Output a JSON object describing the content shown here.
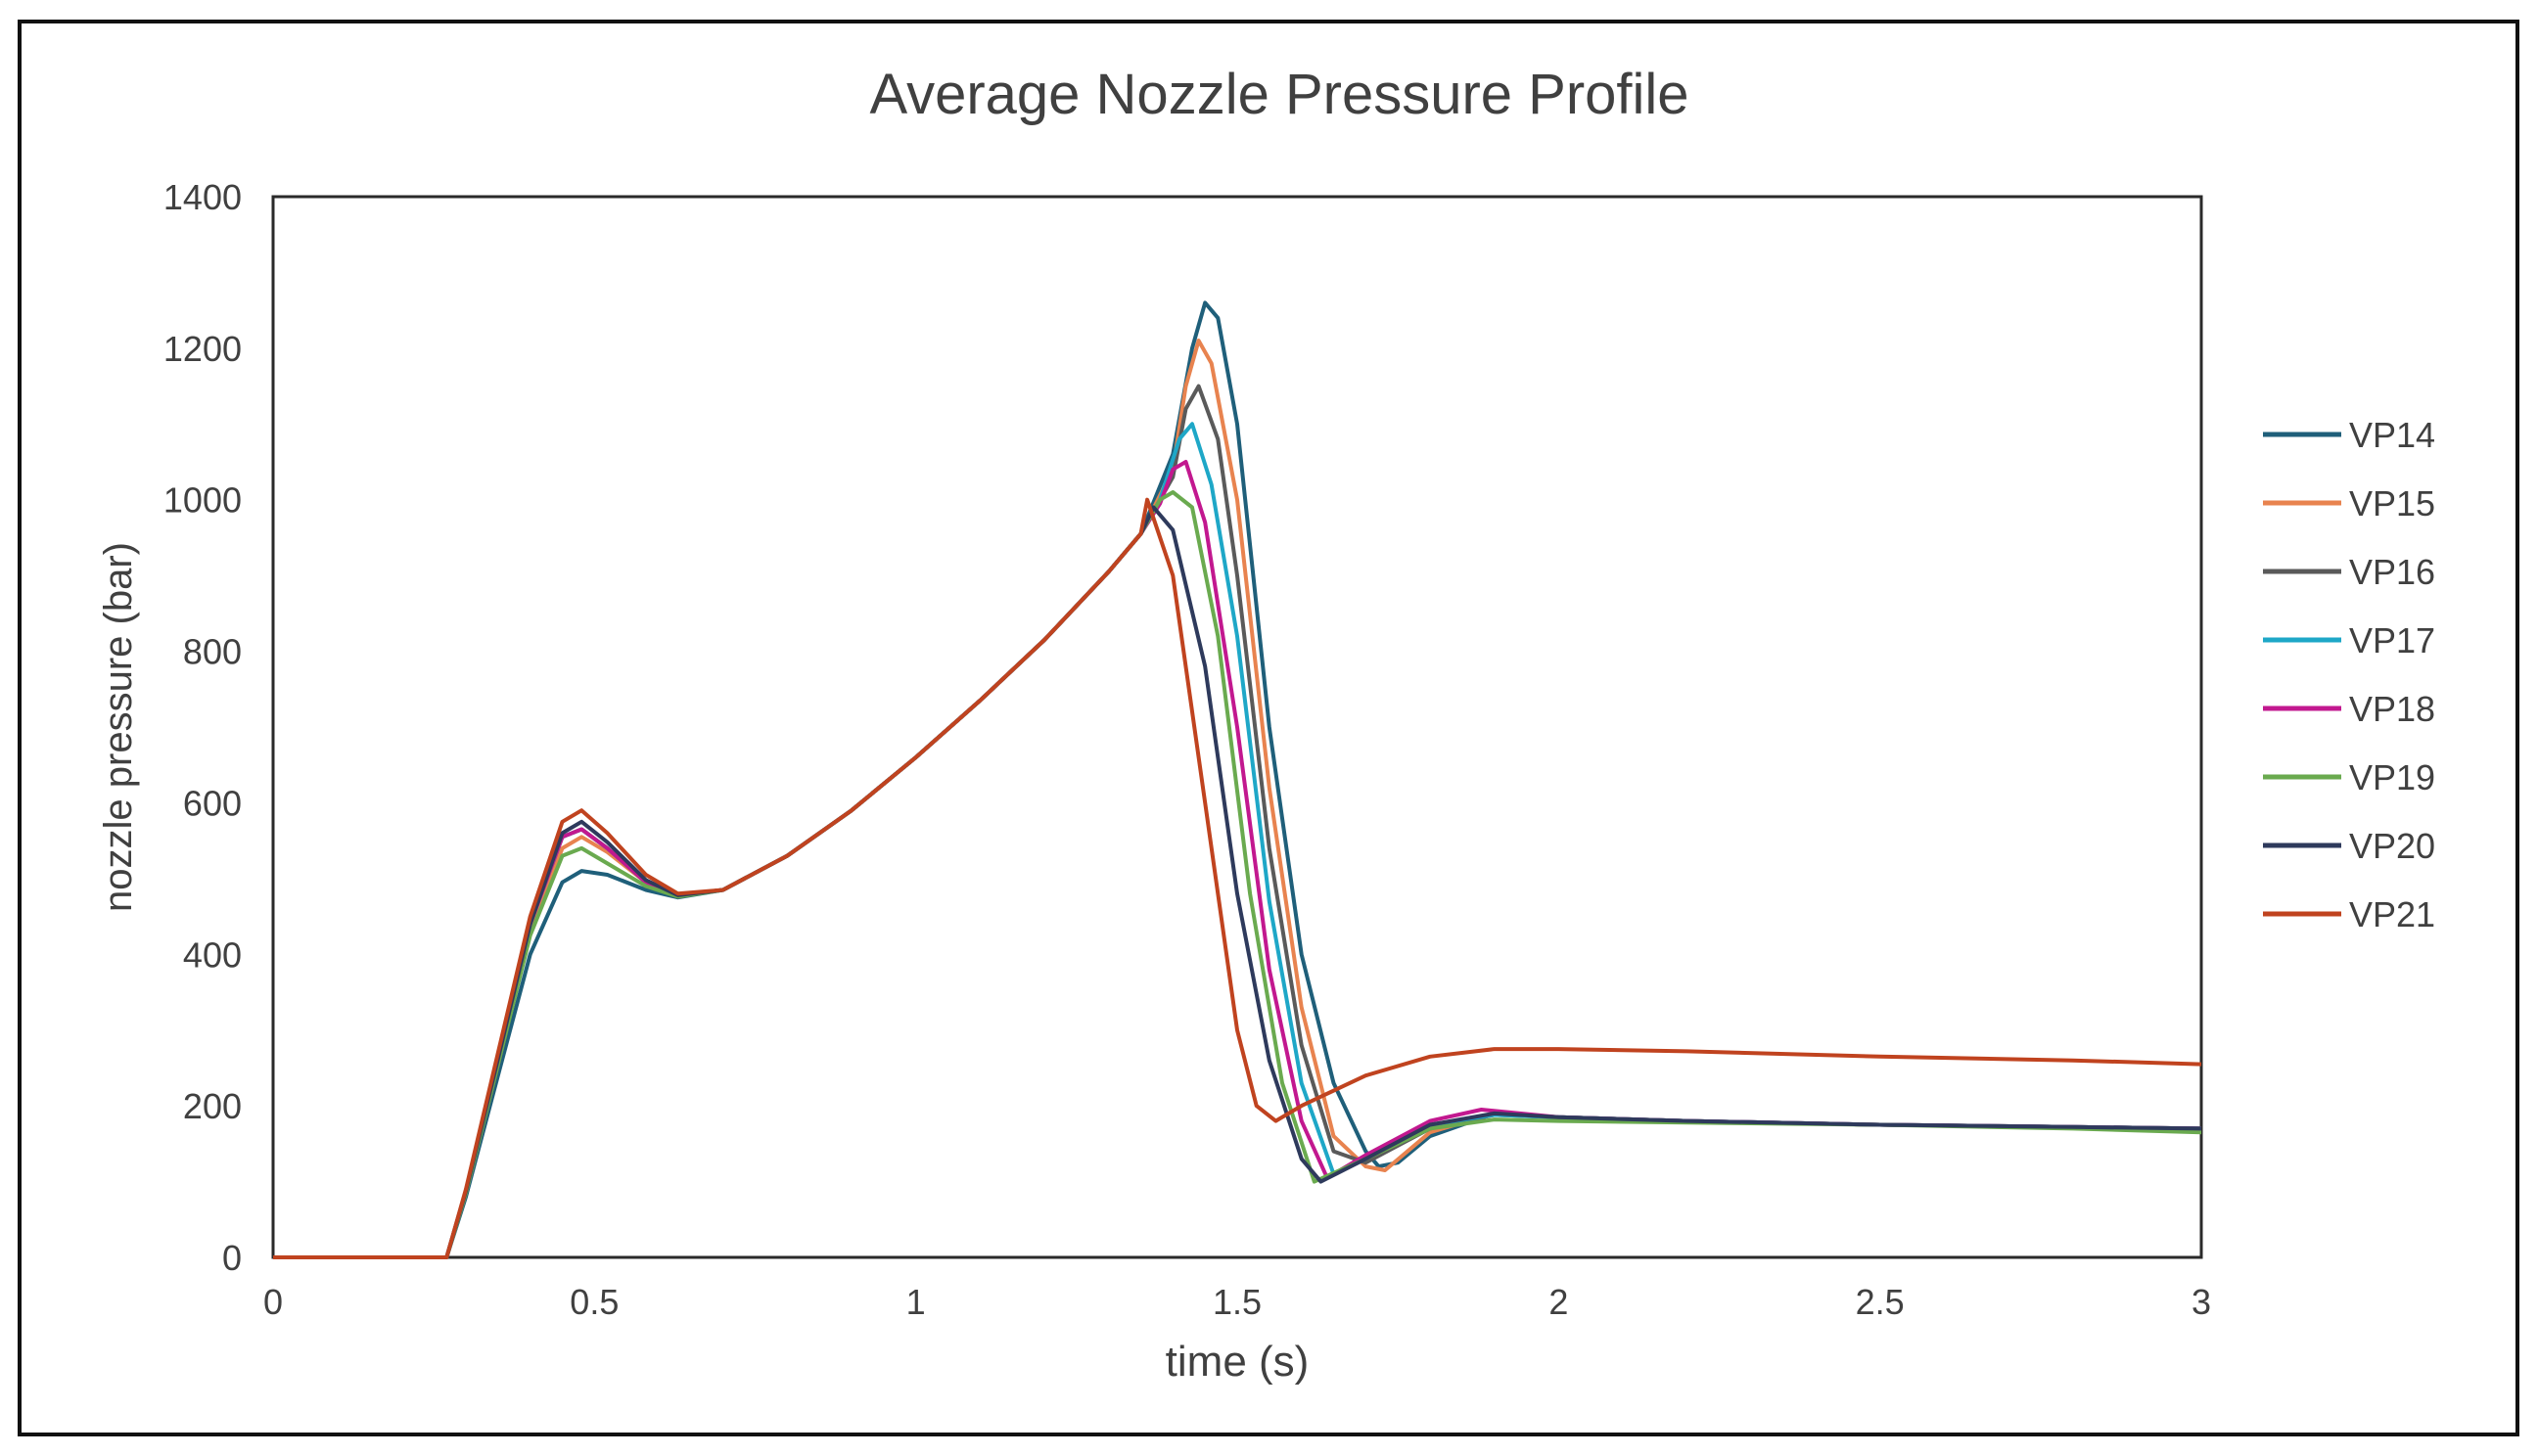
{
  "chart_data": {
    "type": "line",
    "title": "Average Nozzle Pressure Profile",
    "xlabel": "time (s)",
    "ylabel": "nozzle pressure (bar)",
    "xlim": [
      0,
      3
    ],
    "ylim": [
      0,
      1400
    ],
    "xticks": [
      0,
      0.5,
      1,
      1.5,
      2,
      2.5,
      3
    ],
    "xtick_labels": [
      "0",
      "0.5",
      "1",
      "1.5",
      "2",
      "2.5",
      "3"
    ],
    "yticks": [
      0,
      200,
      400,
      600,
      800,
      1000,
      1200,
      1400
    ],
    "ytick_labels": [
      "0",
      "200",
      "400",
      "600",
      "800",
      "1000",
      "1200",
      "1400"
    ],
    "grid": false,
    "legend_position": "right",
    "series": [
      {
        "name": "VP14",
        "color": "#1f5f7a",
        "x": [
          0,
          0.27,
          0.3,
          0.35,
          0.4,
          0.45,
          0.48,
          0.52,
          0.58,
          0.63,
          0.7,
          0.8,
          0.9,
          1.0,
          1.1,
          1.2,
          1.3,
          1.35,
          1.4,
          1.43,
          1.45,
          1.47,
          1.5,
          1.55,
          1.6,
          1.65,
          1.7,
          1.72,
          1.75,
          1.8,
          1.9,
          2.0,
          2.2,
          2.5,
          2.8,
          3.0
        ],
        "values": [
          0,
          0,
          80,
          240,
          400,
          495,
          510,
          505,
          485,
          475,
          485,
          530,
          590,
          660,
          735,
          815,
          905,
          955,
          1060,
          1200,
          1260,
          1240,
          1100,
          700,
          400,
          230,
          140,
          120,
          125,
          160,
          190,
          185,
          180,
          175,
          172,
          170
        ]
      },
      {
        "name": "VP15",
        "color": "#e8834f",
        "x": [
          0,
          0.27,
          0.3,
          0.35,
          0.4,
          0.45,
          0.48,
          0.52,
          0.58,
          0.63,
          0.7,
          0.8,
          0.9,
          1.0,
          1.1,
          1.2,
          1.3,
          1.35,
          1.4,
          1.42,
          1.44,
          1.46,
          1.5,
          1.55,
          1.6,
          1.65,
          1.7,
          1.73,
          1.8,
          1.9,
          2.0,
          2.2,
          2.5,
          2.8,
          3.0
        ],
        "values": [
          0,
          0,
          85,
          255,
          430,
          540,
          555,
          535,
          495,
          478,
          485,
          530,
          590,
          660,
          735,
          815,
          905,
          955,
          1040,
          1150,
          1210,
          1180,
          1000,
          620,
          330,
          160,
          120,
          115,
          165,
          190,
          185,
          180,
          175,
          172,
          170
        ]
      },
      {
        "name": "VP16",
        "color": "#5a5a5a",
        "x": [
          0,
          0.27,
          0.3,
          0.35,
          0.4,
          0.45,
          0.48,
          0.52,
          0.58,
          0.63,
          0.7,
          0.8,
          0.9,
          1.0,
          1.1,
          1.2,
          1.3,
          1.35,
          1.4,
          1.42,
          1.44,
          1.47,
          1.5,
          1.55,
          1.6,
          1.65,
          1.7,
          1.8,
          1.9,
          2.0,
          2.2,
          2.5,
          2.8,
          3.0
        ],
        "values": [
          0,
          0,
          88,
          262,
          440,
          555,
          565,
          540,
          495,
          478,
          485,
          530,
          590,
          660,
          735,
          815,
          905,
          955,
          1030,
          1120,
          1150,
          1080,
          900,
          540,
          280,
          140,
          125,
          170,
          188,
          185,
          180,
          175,
          172,
          170
        ]
      },
      {
        "name": "VP17",
        "color": "#1ea7c7",
        "x": [
          0,
          0.27,
          0.3,
          0.35,
          0.4,
          0.45,
          0.48,
          0.52,
          0.58,
          0.63,
          0.7,
          0.8,
          0.9,
          1.0,
          1.1,
          1.2,
          1.3,
          1.35,
          1.38,
          1.41,
          1.43,
          1.46,
          1.5,
          1.55,
          1.6,
          1.65,
          1.7,
          1.8,
          1.9,
          2.0,
          2.2,
          2.5,
          2.8,
          3.0
        ],
        "values": [
          0,
          0,
          88,
          262,
          440,
          555,
          565,
          540,
          495,
          478,
          485,
          530,
          590,
          660,
          735,
          815,
          905,
          955,
          1000,
          1080,
          1100,
          1020,
          820,
          470,
          230,
          110,
          130,
          175,
          188,
          185,
          180,
          175,
          172,
          170
        ]
      },
      {
        "name": "VP18",
        "color": "#c2188f",
        "x": [
          0,
          0.27,
          0.3,
          0.35,
          0.4,
          0.45,
          0.48,
          0.52,
          0.58,
          0.63,
          0.7,
          0.8,
          0.9,
          1.0,
          1.1,
          1.2,
          1.3,
          1.35,
          1.38,
          1.4,
          1.42,
          1.45,
          1.5,
          1.55,
          1.6,
          1.64,
          1.7,
          1.8,
          1.88,
          2.0,
          2.2,
          2.5,
          2.8,
          3.0
        ],
        "values": [
          0,
          0,
          88,
          262,
          440,
          555,
          565,
          540,
          495,
          478,
          485,
          530,
          590,
          660,
          735,
          815,
          905,
          955,
          995,
          1040,
          1050,
          970,
          700,
          380,
          180,
          105,
          135,
          180,
          195,
          185,
          180,
          175,
          172,
          170
        ]
      },
      {
        "name": "VP19",
        "color": "#6aaa4f",
        "x": [
          0,
          0.27,
          0.3,
          0.35,
          0.4,
          0.45,
          0.48,
          0.52,
          0.58,
          0.63,
          0.7,
          0.8,
          0.9,
          1.0,
          1.1,
          1.2,
          1.3,
          1.35,
          1.38,
          1.4,
          1.43,
          1.47,
          1.52,
          1.57,
          1.62,
          1.7,
          1.8,
          1.9,
          2.0,
          2.2,
          2.5,
          2.8,
          3.0
        ],
        "values": [
          0,
          0,
          85,
          255,
          425,
          530,
          540,
          520,
          490,
          476,
          485,
          530,
          590,
          660,
          735,
          815,
          905,
          955,
          1000,
          1010,
          990,
          820,
          480,
          230,
          100,
          130,
          170,
          182,
          180,
          178,
          175,
          170,
          165
        ]
      },
      {
        "name": "VP20",
        "color": "#2e3a5c",
        "x": [
          0,
          0.27,
          0.3,
          0.35,
          0.4,
          0.45,
          0.48,
          0.52,
          0.58,
          0.63,
          0.7,
          0.8,
          0.9,
          1.0,
          1.1,
          1.2,
          1.3,
          1.35,
          1.37,
          1.4,
          1.45,
          1.5,
          1.55,
          1.6,
          1.63,
          1.7,
          1.8,
          1.9,
          2.0,
          2.2,
          2.5,
          2.8,
          3.0
        ],
        "values": [
          0,
          0,
          88,
          262,
          440,
          560,
          575,
          548,
          498,
          478,
          485,
          530,
          590,
          660,
          735,
          815,
          905,
          955,
          990,
          960,
          780,
          480,
          260,
          130,
          100,
          130,
          175,
          190,
          185,
          180,
          175,
          172,
          170
        ]
      },
      {
        "name": "VP21",
        "color": "#c0431f",
        "x": [
          0,
          0.27,
          0.3,
          0.35,
          0.4,
          0.45,
          0.48,
          0.52,
          0.58,
          0.63,
          0.7,
          0.8,
          0.9,
          1.0,
          1.1,
          1.2,
          1.3,
          1.35,
          1.36,
          1.4,
          1.45,
          1.5,
          1.53,
          1.56,
          1.6,
          1.7,
          1.8,
          1.9,
          2.0,
          2.2,
          2.5,
          2.8,
          3.0
        ],
        "values": [
          0,
          0,
          90,
          270,
          450,
          575,
          590,
          560,
          505,
          480,
          485,
          530,
          590,
          660,
          735,
          815,
          905,
          955,
          1000,
          900,
          600,
          300,
          200,
          180,
          200,
          240,
          265,
          275,
          275,
          272,
          265,
          260,
          255
        ]
      }
    ]
  }
}
